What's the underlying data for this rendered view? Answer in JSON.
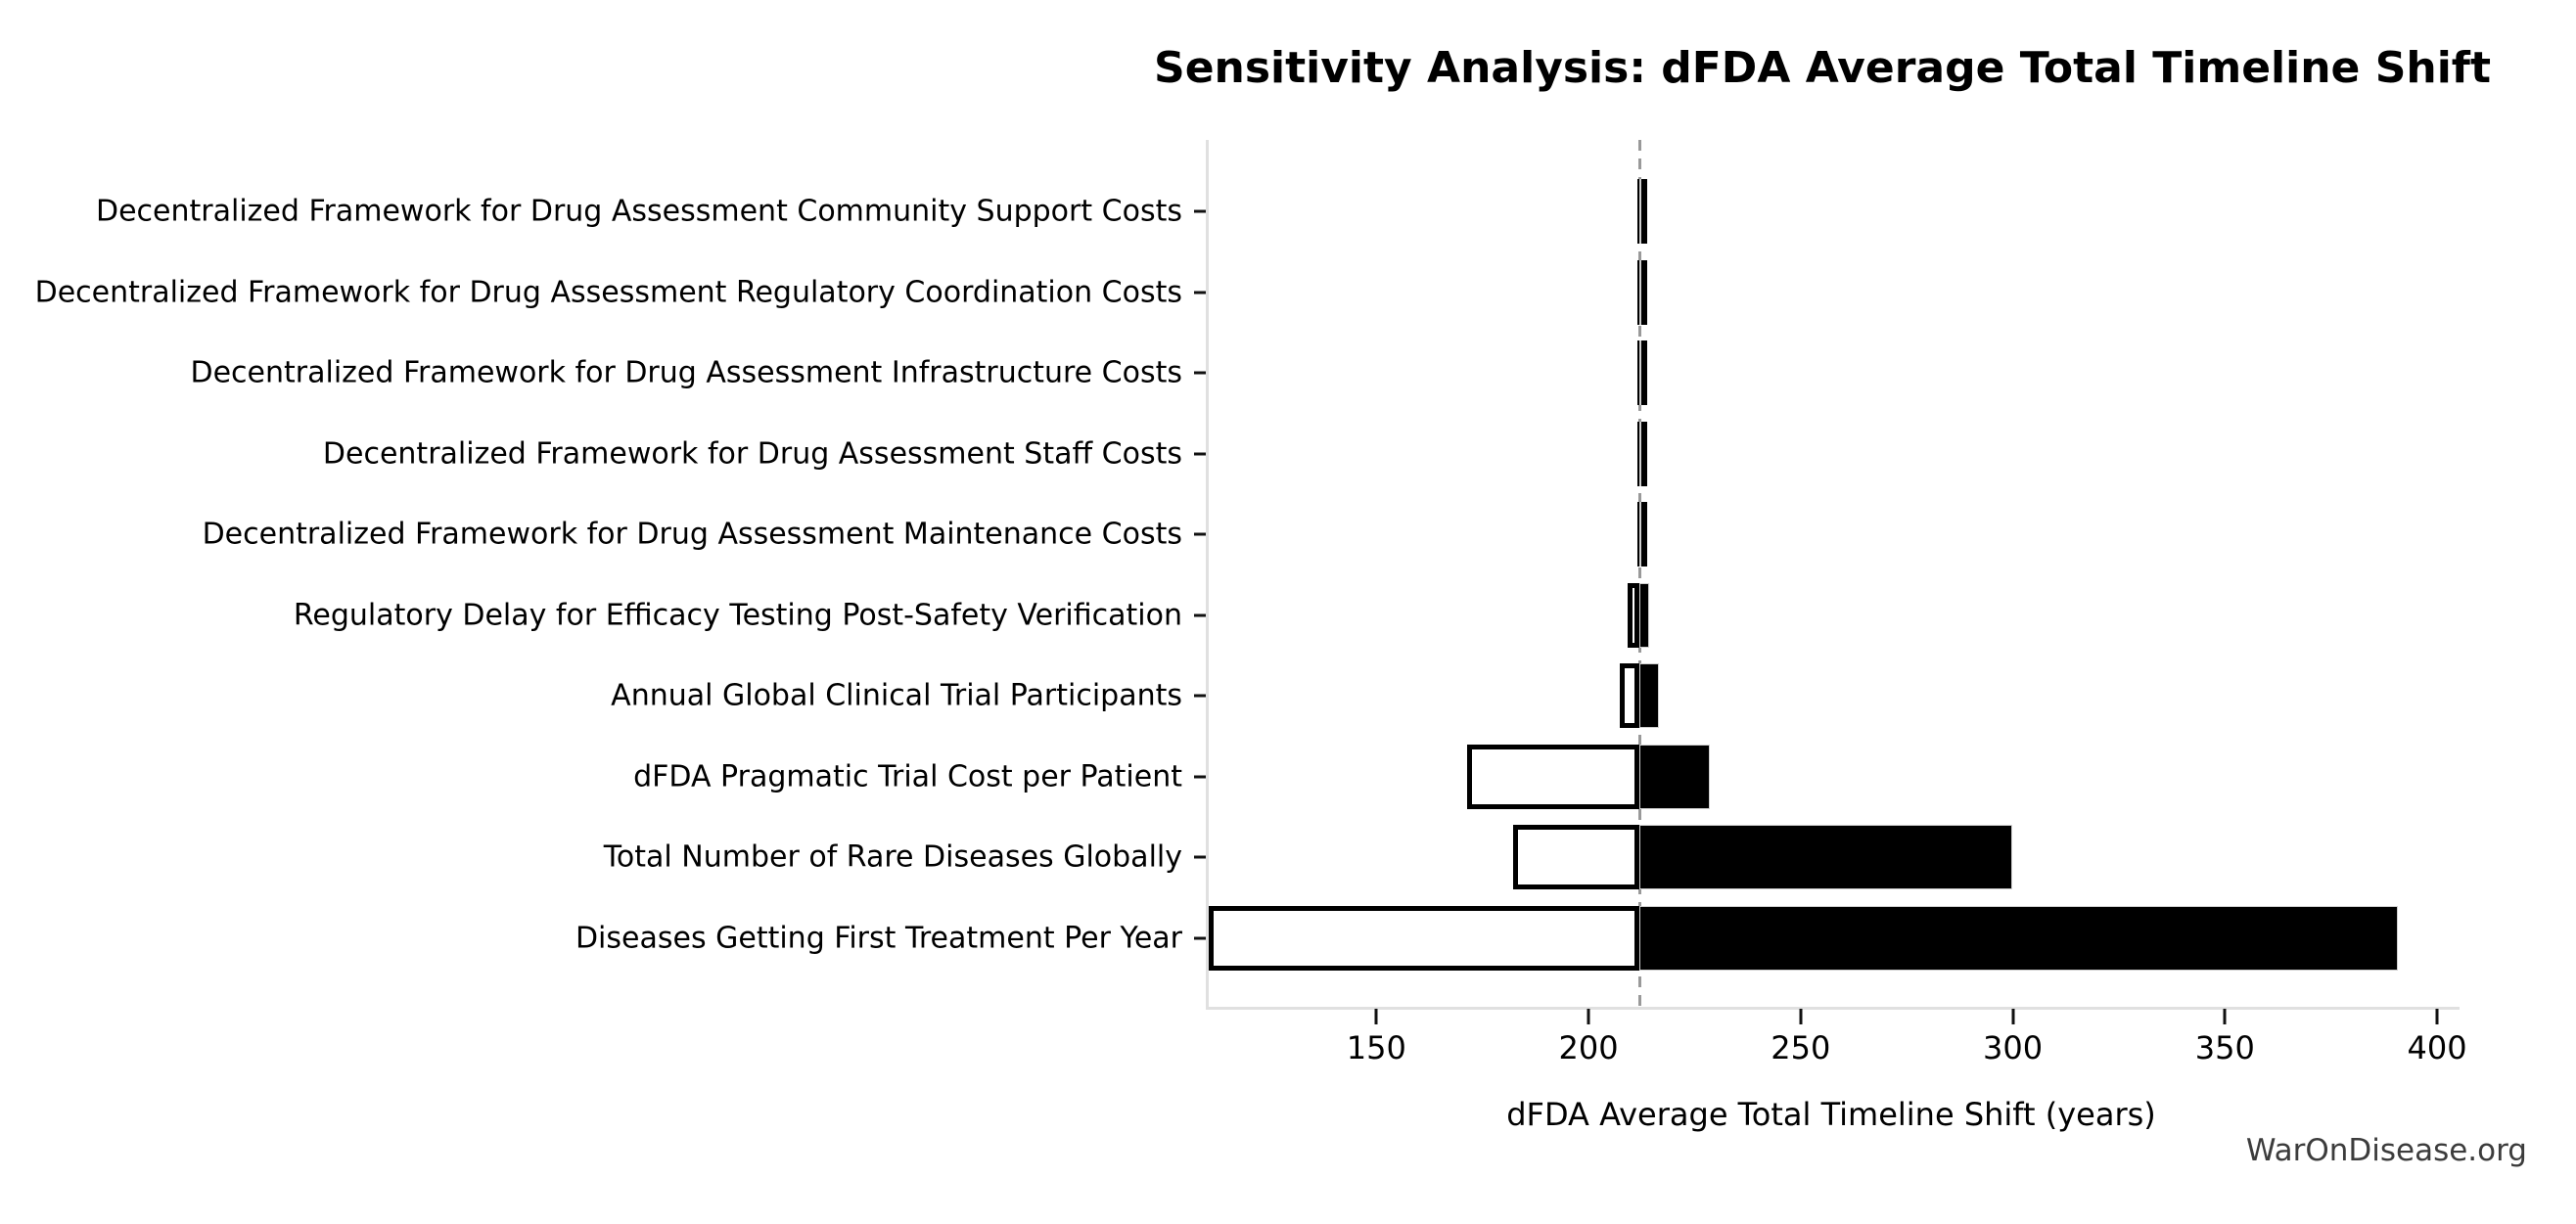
{
  "title": "Sensitivity Analysis: dFDA Average Total Timeline Shift",
  "watermark": "WarOnDisease.org",
  "chart_data": {
    "type": "bar",
    "subtype": "tornado",
    "orientation": "horizontal",
    "title": "Sensitivity Analysis: dFDA Average Total Timeline Shift",
    "xlabel": "dFDA Average Total Timeline Shift (years)",
    "ylabel": "",
    "baseline": 212,
    "xlim": [
      109.8,
      404.6
    ],
    "xticks": [
      150,
      200,
      250,
      300,
      350,
      400
    ],
    "grid": false,
    "legend": "none",
    "categories": [
      "Decentralized Framework for Drug Assessment Community Support Costs",
      "Decentralized Framework for Drug Assessment Regulatory Coordination Costs",
      "Decentralized Framework for Drug Assessment Infrastructure Costs",
      "Decentralized Framework for Drug Assessment Staff Costs",
      "Decentralized Framework for Drug Assessment Maintenance Costs",
      "Regulatory Delay for Efficacy Testing Post-Safety Verification",
      "Annual Global Clinical Trial Participants",
      "dFDA Pragmatic Trial Cost per Patient",
      "Total Number of Rare Diseases Globally",
      "Diseases Getting First Treatment Per Year"
    ],
    "series": [
      {
        "name": "low_value_shift",
        "values": [
          211.9,
          211.9,
          211.9,
          211.9,
          211.9,
          209.2,
          207.3,
          171.4,
          182.3,
          110.4
        ]
      },
      {
        "name": "high_value_shift",
        "values": [
          212.1,
          212.1,
          212.1,
          212.1,
          212.1,
          214.4,
          216.5,
          228.7,
          299.8,
          390.8
        ]
      }
    ],
    "colors": {
      "low_fill": "#ffffff",
      "high_fill": "#000000",
      "bar_edge": "#000000",
      "baseline_line": "#999999",
      "spine": "#e0e0e0",
      "text": "#000000",
      "watermark": "#3c3c3c"
    }
  }
}
